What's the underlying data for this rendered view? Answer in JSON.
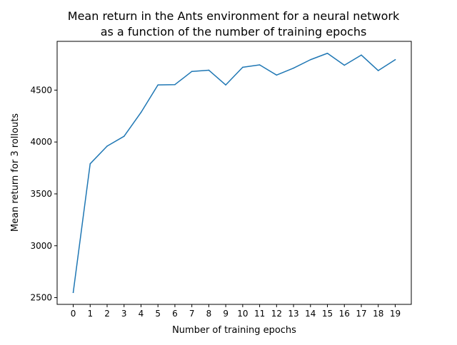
{
  "chart_data": {
    "type": "line",
    "title_lines": [
      "Mean return in the Ants environment for a neural network",
      "as a function of the number of training epochs"
    ],
    "xlabel": "Number of training epochs",
    "ylabel": "Mean return for 3 rollouts",
    "x": [
      0,
      1,
      2,
      3,
      4,
      5,
      6,
      7,
      8,
      9,
      10,
      11,
      12,
      13,
      14,
      15,
      16,
      17,
      18,
      19
    ],
    "series": [
      {
        "color": "#1f77b4",
        "values": [
          2550,
          3790,
          3960,
          4055,
          4285,
          4550,
          4553,
          4680,
          4692,
          4550,
          4720,
          4743,
          4645,
          4712,
          4793,
          4855,
          4740,
          4838,
          4688,
          4793
        ]
      }
    ],
    "xlim": [
      -0.95,
      19.95
    ],
    "ylim": [
      2435,
      4970
    ],
    "x_ticks": [
      0,
      1,
      2,
      3,
      4,
      5,
      6,
      7,
      8,
      9,
      10,
      11,
      12,
      13,
      14,
      15,
      16,
      17,
      18,
      19
    ],
    "y_ticks": [
      2500,
      3000,
      3500,
      4000,
      4500
    ],
    "grid": false
  }
}
